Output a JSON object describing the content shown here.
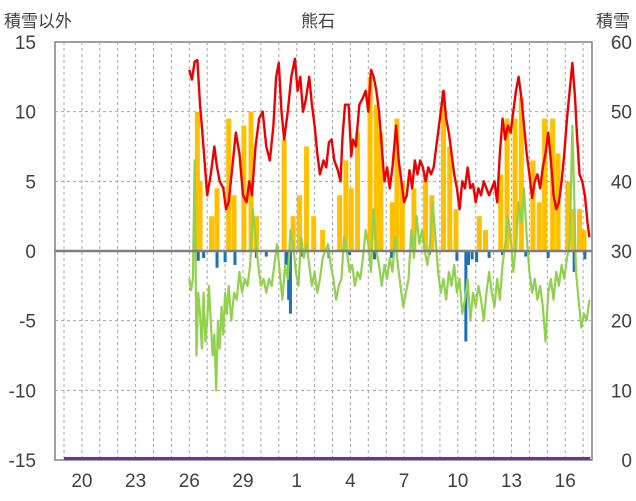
{
  "chart_data": {
    "type": "bar+line",
    "title": "熊石",
    "left_axis_title": "積雪以外",
    "right_axis_title": "積雪",
    "left_ylim": [
      -15,
      15
    ],
    "left_yticks": [
      -15,
      -10,
      -5,
      0,
      5,
      10,
      15
    ],
    "right_ylim": [
      0,
      60
    ],
    "right_yticks": [
      0,
      10,
      20,
      30,
      40,
      50,
      60
    ],
    "x_range": [
      0,
      29
    ],
    "x_ticks": [
      {
        "x": 1,
        "label": "20"
      },
      {
        "x": 4,
        "label": "23"
      },
      {
        "x": 7,
        "label": "26"
      },
      {
        "x": 10,
        "label": "29"
      },
      {
        "x": 13,
        "label": "1"
      },
      {
        "x": 16,
        "label": "4"
      },
      {
        "x": 19,
        "label": "7"
      },
      {
        "x": 22,
        "label": "10"
      },
      {
        "x": 25,
        "label": "13"
      },
      {
        "x": 28,
        "label": "16"
      }
    ],
    "grid": "dashed vertical per day, horizontal at each left-axis tick",
    "colors": {
      "temperature": "#ee0000",
      "precipitation": "#ffc000",
      "snow_change": "#1f6fb4",
      "secondary_line": "#92d050",
      "snow_depth": "#7030a0",
      "zero_line": "#7f7f7f",
      "grid": "#a6a6a6"
    },
    "series_red": [
      [
        7.0,
        13.0
      ],
      [
        7.15,
        12.3
      ],
      [
        7.3,
        13.6
      ],
      [
        7.45,
        13.7
      ],
      [
        7.6,
        10.5
      ],
      [
        7.7,
        9.0
      ],
      [
        7.85,
        6.5
      ],
      [
        8.0,
        4.0
      ],
      [
        8.2,
        5.5
      ],
      [
        8.4,
        7.5
      ],
      [
        8.55,
        6.0
      ],
      [
        8.7,
        5.0
      ],
      [
        8.9,
        4.5
      ],
      [
        9.05,
        3.0
      ],
      [
        9.2,
        3.5
      ],
      [
        9.4,
        6.0
      ],
      [
        9.6,
        8.5
      ],
      [
        9.8,
        7.0
      ],
      [
        10.0,
        4.0
      ],
      [
        10.2,
        3.5
      ],
      [
        10.35,
        5.0
      ],
      [
        10.5,
        4.0
      ],
      [
        10.7,
        7.5
      ],
      [
        10.9,
        9.5
      ],
      [
        11.1,
        10.0
      ],
      [
        11.3,
        7.5
      ],
      [
        11.5,
        6.5
      ],
      [
        11.7,
        9.0
      ],
      [
        11.85,
        12.5
      ],
      [
        12.0,
        13.5
      ],
      [
        12.15,
        10.0
      ],
      [
        12.3,
        8.0
      ],
      [
        12.5,
        10.0
      ],
      [
        12.7,
        12.5
      ],
      [
        12.9,
        13.8
      ],
      [
        13.05,
        11.5
      ],
      [
        13.2,
        12.5
      ],
      [
        13.35,
        10.0
      ],
      [
        13.5,
        10.8
      ],
      [
        13.7,
        12.5
      ],
      [
        13.85,
        10.5
      ],
      [
        14.0,
        9.0
      ],
      [
        14.15,
        7.0
      ],
      [
        14.3,
        5.5
      ],
      [
        14.5,
        6.5
      ],
      [
        14.65,
        6.0
      ],
      [
        14.8,
        7.8
      ],
      [
        14.95,
        8.0
      ],
      [
        15.1,
        6.5
      ],
      [
        15.3,
        5.8
      ],
      [
        15.45,
        5.0
      ],
      [
        15.55,
        8.0
      ],
      [
        15.7,
        10.5
      ],
      [
        15.9,
        10.5
      ],
      [
        16.05,
        6.8
      ],
      [
        16.15,
        8.0
      ],
      [
        16.3,
        7.5
      ],
      [
        16.5,
        10.5
      ],
      [
        16.7,
        11.0
      ],
      [
        16.85,
        11.5
      ],
      [
        17.0,
        10.0
      ],
      [
        17.15,
        13.0
      ],
      [
        17.3,
        12.5
      ],
      [
        17.45,
        11.5
      ],
      [
        17.6,
        10.0
      ],
      [
        17.75,
        7.5
      ],
      [
        17.9,
        5.0
      ],
      [
        18.05,
        6.0
      ],
      [
        18.2,
        4.5
      ],
      [
        18.35,
        6.0
      ],
      [
        18.55,
        9.0
      ],
      [
        18.7,
        6.5
      ],
      [
        18.85,
        5.0
      ],
      [
        19.0,
        3.5
      ],
      [
        19.15,
        4.0
      ],
      [
        19.3,
        5.8
      ],
      [
        19.45,
        4.5
      ],
      [
        19.6,
        6.5
      ],
      [
        19.75,
        5.5
      ],
      [
        19.9,
        6.5
      ],
      [
        20.05,
        6.0
      ],
      [
        20.2,
        5.0
      ],
      [
        20.35,
        6.0
      ],
      [
        20.5,
        5.5
      ],
      [
        20.65,
        6.0
      ],
      [
        20.8,
        7.5
      ],
      [
        20.95,
        9.0
      ],
      [
        21.1,
        10.5
      ],
      [
        21.2,
        11.5
      ],
      [
        21.35,
        9.5
      ],
      [
        21.5,
        8.5
      ],
      [
        21.65,
        7.0
      ],
      [
        21.8,
        5.5
      ],
      [
        21.95,
        4.5
      ],
      [
        22.1,
        3.0
      ],
      [
        22.25,
        5.0
      ],
      [
        22.4,
        4.5
      ],
      [
        22.55,
        6.0
      ],
      [
        22.7,
        4.5
      ],
      [
        22.85,
        4.8
      ],
      [
        23.0,
        3.5
      ],
      [
        23.15,
        4.5
      ],
      [
        23.3,
        4.0
      ],
      [
        23.45,
        5.0
      ],
      [
        23.6,
        4.5
      ],
      [
        23.75,
        4.0
      ],
      [
        23.9,
        4.5
      ],
      [
        24.05,
        5.0
      ],
      [
        24.2,
        3.5
      ],
      [
        24.35,
        7.0
      ],
      [
        24.5,
        9.5
      ],
      [
        24.65,
        8.0
      ],
      [
        24.8,
        9.0
      ],
      [
        24.95,
        8.5
      ],
      [
        25.1,
        10.0
      ],
      [
        25.25,
        11.5
      ],
      [
        25.4,
        12.5
      ],
      [
        25.55,
        11.0
      ],
      [
        25.7,
        9.0
      ],
      [
        25.85,
        7.0
      ],
      [
        26.0,
        5.5
      ],
      [
        26.15,
        3.8
      ],
      [
        26.3,
        5.0
      ],
      [
        26.45,
        5.5
      ],
      [
        26.6,
        4.5
      ],
      [
        26.75,
        6.0
      ],
      [
        26.9,
        7.0
      ],
      [
        27.05,
        8.5
      ],
      [
        27.2,
        6.5
      ],
      [
        27.35,
        4.0
      ],
      [
        27.5,
        3.0
      ],
      [
        27.65,
        3.5
      ],
      [
        27.8,
        5.0
      ],
      [
        27.95,
        7.0
      ],
      [
        28.1,
        9.5
      ],
      [
        28.25,
        11.5
      ],
      [
        28.4,
        13.5
      ],
      [
        28.55,
        11.0
      ],
      [
        28.65,
        8.5
      ],
      [
        28.8,
        5.5
      ],
      [
        28.95,
        5.0
      ],
      [
        29.1,
        4.0
      ],
      [
        29.25,
        2.0
      ],
      [
        29.35,
        1.0
      ]
    ],
    "series_green": [
      [
        7.0,
        -2.0
      ],
      [
        7.1,
        -2.8
      ],
      [
        7.2,
        -2.0
      ],
      [
        7.3,
        6.5
      ],
      [
        7.4,
        -7.5
      ],
      [
        7.5,
        -3.0
      ],
      [
        7.6,
        -4.5
      ],
      [
        7.7,
        -7.0
      ],
      [
        7.8,
        -3.0
      ],
      [
        7.9,
        -6.5
      ],
      [
        8.0,
        -5.0
      ],
      [
        8.1,
        -2.5
      ],
      [
        8.2,
        -5.0
      ],
      [
        8.3,
        -7.5
      ],
      [
        8.4,
        -6.0
      ],
      [
        8.5,
        -10.0
      ],
      [
        8.6,
        -5.0
      ],
      [
        8.7,
        -7.0
      ],
      [
        8.8,
        -4.0
      ],
      [
        8.9,
        -6.0
      ],
      [
        9.0,
        -3.0
      ],
      [
        9.1,
        -4.5
      ],
      [
        9.2,
        -2.5
      ],
      [
        9.35,
        -5.0
      ],
      [
        9.5,
        -3.0
      ],
      [
        9.65,
        -3.5
      ],
      [
        9.8,
        -1.5
      ],
      [
        9.95,
        -3.0
      ],
      [
        10.1,
        -2.0
      ],
      [
        10.25,
        -2.5
      ],
      [
        10.4,
        -1.0
      ],
      [
        10.55,
        3.0
      ],
      [
        10.7,
        1.0
      ],
      [
        10.85,
        -1.0
      ],
      [
        11.0,
        -2.5
      ],
      [
        11.15,
        -2.0
      ],
      [
        11.3,
        -3.0
      ],
      [
        11.45,
        -2.0
      ],
      [
        11.6,
        -2.5
      ],
      [
        11.75,
        -1.0
      ],
      [
        11.9,
        0.5
      ],
      [
        12.05,
        -1.5
      ],
      [
        12.2,
        -3.5
      ],
      [
        12.35,
        -1.0
      ],
      [
        12.5,
        -2.0
      ],
      [
        12.65,
        1.5
      ],
      [
        12.8,
        0.5
      ],
      [
        12.95,
        -1.5
      ],
      [
        13.1,
        -2.5
      ],
      [
        13.25,
        1.0
      ],
      [
        13.4,
        -0.5
      ],
      [
        13.55,
        0.5
      ],
      [
        13.7,
        -1.0
      ],
      [
        13.85,
        -2.5
      ],
      [
        14.0,
        -1.5
      ],
      [
        14.15,
        -3.0
      ],
      [
        14.3,
        -2.0
      ],
      [
        14.45,
        -0.5
      ],
      [
        14.6,
        0.0
      ],
      [
        14.75,
        0.5
      ],
      [
        14.9,
        -1.0
      ],
      [
        15.05,
        -2.0
      ],
      [
        15.2,
        -3.5
      ],
      [
        15.35,
        -2.5
      ],
      [
        15.5,
        -2.0
      ],
      [
        15.65,
        1.0
      ],
      [
        15.8,
        0.0
      ],
      [
        15.95,
        -1.5
      ],
      [
        16.1,
        -1.0
      ],
      [
        16.25,
        -2.5
      ],
      [
        16.4,
        -1.5
      ],
      [
        16.55,
        -2.0
      ],
      [
        16.7,
        -0.5
      ],
      [
        16.85,
        1.5
      ],
      [
        17.0,
        0.5
      ],
      [
        17.15,
        -1.5
      ],
      [
        17.3,
        3.0
      ],
      [
        17.45,
        0.0
      ],
      [
        17.6,
        -1.0
      ],
      [
        17.75,
        -2.5
      ],
      [
        17.9,
        -1.0
      ],
      [
        18.05,
        -2.0
      ],
      [
        18.2,
        -0.5
      ],
      [
        18.35,
        -1.5
      ],
      [
        18.5,
        1.0
      ],
      [
        18.65,
        -1.0
      ],
      [
        18.8,
        -2.5
      ],
      [
        18.95,
        -4.0
      ],
      [
        19.1,
        -3.0
      ],
      [
        19.25,
        -2.0
      ],
      [
        19.4,
        1.5
      ],
      [
        19.55,
        -0.5
      ],
      [
        19.7,
        2.5
      ],
      [
        19.85,
        0.5
      ],
      [
        20.0,
        1.5
      ],
      [
        20.15,
        0.0
      ],
      [
        20.3,
        -1.0
      ],
      [
        20.45,
        0.5
      ],
      [
        20.6,
        3.5
      ],
      [
        20.75,
        1.0
      ],
      [
        20.9,
        -1.5
      ],
      [
        21.05,
        -3.0
      ],
      [
        21.2,
        -2.0
      ],
      [
        21.35,
        -3.5
      ],
      [
        21.5,
        -1.5
      ],
      [
        21.65,
        -2.5
      ],
      [
        21.8,
        -1.0
      ],
      [
        21.95,
        -3.0
      ],
      [
        22.1,
        -2.0
      ],
      [
        22.25,
        -4.5
      ],
      [
        22.4,
        -3.5
      ],
      [
        22.55,
        -2.0
      ],
      [
        22.7,
        -5.0
      ],
      [
        22.85,
        -3.0
      ],
      [
        23.0,
        -4.0
      ],
      [
        23.15,
        -2.5
      ],
      [
        23.3,
        -3.5
      ],
      [
        23.45,
        -5.0
      ],
      [
        23.6,
        -3.0
      ],
      [
        23.75,
        -1.5
      ],
      [
        23.9,
        -3.0
      ],
      [
        24.05,
        -4.0
      ],
      [
        24.2,
        -2.0
      ],
      [
        24.35,
        -3.5
      ],
      [
        24.5,
        -1.0
      ],
      [
        24.65,
        0.5
      ],
      [
        24.8,
        2.5
      ],
      [
        24.95,
        1.0
      ],
      [
        25.1,
        -1.5
      ],
      [
        25.25,
        0.5
      ],
      [
        25.4,
        3.5
      ],
      [
        25.55,
        2.0
      ],
      [
        25.7,
        4.5
      ],
      [
        25.85,
        1.0
      ],
      [
        26.0,
        -1.5
      ],
      [
        26.15,
        -3.0
      ],
      [
        26.3,
        -2.0
      ],
      [
        26.45,
        -3.5
      ],
      [
        26.6,
        -2.5
      ],
      [
        26.75,
        -4.0
      ],
      [
        26.9,
        -6.5
      ],
      [
        27.05,
        -3.0
      ],
      [
        27.2,
        -2.0
      ],
      [
        27.35,
        -3.5
      ],
      [
        27.5,
        -1.5
      ],
      [
        27.65,
        -2.5
      ],
      [
        27.8,
        -1.0
      ],
      [
        27.95,
        -2.0
      ],
      [
        28.1,
        -0.5
      ],
      [
        28.25,
        0.5
      ],
      [
        28.4,
        9.0
      ],
      [
        28.5,
        4.0
      ],
      [
        28.6,
        -1.5
      ],
      [
        28.75,
        -3.5
      ],
      [
        28.9,
        -5.5
      ],
      [
        29.05,
        -4.5
      ],
      [
        29.2,
        -5.0
      ],
      [
        29.35,
        -3.5
      ]
    ],
    "bars_precipitation": [
      [
        7.45,
        10.0
      ],
      [
        7.6,
        5.0
      ],
      [
        8.25,
        2.5
      ],
      [
        8.55,
        4.5
      ],
      [
        9.2,
        9.5
      ],
      [
        9.5,
        4.0
      ],
      [
        10.05,
        9.0
      ],
      [
        10.45,
        10.0
      ],
      [
        10.75,
        2.5
      ],
      [
        12.3,
        8.0
      ],
      [
        12.8,
        2.5
      ],
      [
        13.15,
        4.0
      ],
      [
        13.55,
        7.5
      ],
      [
        13.95,
        2.5
      ],
      [
        14.45,
        1.5
      ],
      [
        15.4,
        4.0
      ],
      [
        15.75,
        6.5
      ],
      [
        16.05,
        4.5
      ],
      [
        16.4,
        8.5
      ],
      [
        17.1,
        12.5
      ],
      [
        17.45,
        10.5
      ],
      [
        17.7,
        8.5
      ],
      [
        18.35,
        3.5
      ],
      [
        18.6,
        9.5
      ],
      [
        18.9,
        5.0
      ],
      [
        19.55,
        4.5
      ],
      [
        20.2,
        5.5
      ],
      [
        20.55,
        4.0
      ],
      [
        21.2,
        11.5
      ],
      [
        21.55,
        7.5
      ],
      [
        21.9,
        3.0
      ],
      [
        23.2,
        2.5
      ],
      [
        23.55,
        1.5
      ],
      [
        24.4,
        5.5
      ],
      [
        24.75,
        9.5
      ],
      [
        25.2,
        9.5
      ],
      [
        25.55,
        11.0
      ],
      [
        26.2,
        6.5
      ],
      [
        26.55,
        3.5
      ],
      [
        26.85,
        9.5
      ],
      [
        27.3,
        9.5
      ],
      [
        27.6,
        7.0
      ],
      [
        28.15,
        5.0
      ],
      [
        28.45,
        3.0
      ],
      [
        28.8,
        3.0
      ],
      [
        29.05,
        1.5
      ]
    ],
    "bars_snow_change": [
      [
        7.5,
        -0.7
      ],
      [
        7.8,
        -0.5
      ],
      [
        8.55,
        -1.2
      ],
      [
        9.0,
        -0.8
      ],
      [
        9.55,
        -1.0
      ],
      [
        10.75,
        -0.5
      ],
      [
        11.3,
        -0.4
      ],
      [
        12.4,
        -1.0
      ],
      [
        12.55,
        -3.5
      ],
      [
        12.65,
        -4.5
      ],
      [
        13.25,
        -0.4
      ],
      [
        14.8,
        -0.5
      ],
      [
        15.95,
        -0.3
      ],
      [
        17.35,
        -0.6
      ],
      [
        18.3,
        -0.5
      ],
      [
        20.4,
        -0.3
      ],
      [
        21.95,
        -0.7
      ],
      [
        22.45,
        -6.5
      ],
      [
        22.6,
        -1.0
      ],
      [
        22.8,
        -0.6
      ],
      [
        23.05,
        -0.8
      ],
      [
        23.75,
        -0.5
      ],
      [
        24.5,
        -0.3
      ],
      [
        25.8,
        -0.4
      ],
      [
        27.05,
        -0.5
      ],
      [
        28.5,
        -1.5
      ],
      [
        29.1,
        -0.6
      ]
    ],
    "snow_depth_line": [
      [
        0,
        0
      ],
      [
        29.4,
        0
      ]
    ],
    "ylabel_left": "積雪以外",
    "ylabel_right": "積雪"
  }
}
